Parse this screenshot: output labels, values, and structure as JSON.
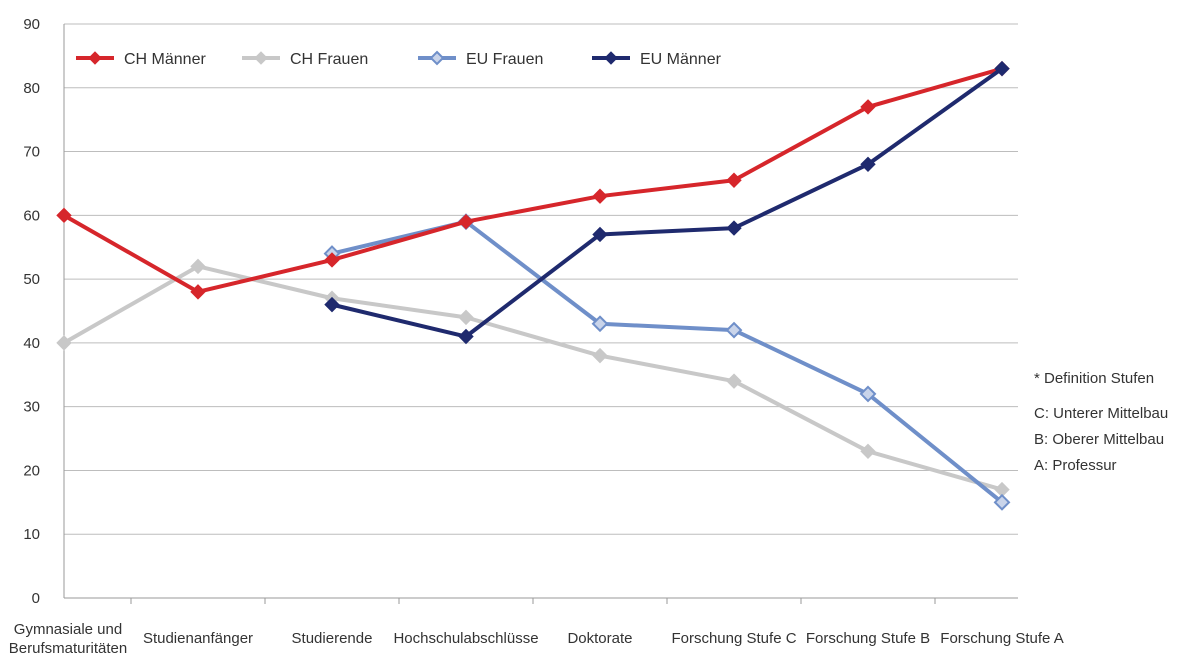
{
  "chart_data": {
    "type": "line",
    "categories": [
      [
        "Gymnasiale und",
        "Berufsmaturitäten"
      ],
      [
        "Studienanfänger"
      ],
      [
        "Studierende"
      ],
      [
        "Hochschulabschlüsse"
      ],
      [
        "Doktorate"
      ],
      [
        "Forschung Stufe C"
      ],
      [
        "Forschung Stufe B"
      ],
      [
        "Forschung Stufe A"
      ]
    ],
    "ylim": [
      0,
      90
    ],
    "yticks": [
      0,
      10,
      20,
      30,
      40,
      50,
      60,
      70,
      80,
      90
    ],
    "grid": true,
    "legend_position": "top-left",
    "series": [
      {
        "name": "CH Männer",
        "color": "#d6262b",
        "marker": "diamond-filled",
        "values": [
          60,
          48,
          53,
          59,
          63,
          65.5,
          77,
          83
        ]
      },
      {
        "name": "CH Frauen",
        "color": "#c8c8c8",
        "marker": "diamond-filled",
        "values": [
          40,
          52,
          47,
          44,
          38,
          34,
          23,
          17
        ]
      },
      {
        "name": "EU Frauen",
        "color": "#6f8fc9",
        "marker": "diamond-open",
        "values": [
          null,
          null,
          54,
          59,
          43,
          42,
          32,
          15
        ]
      },
      {
        "name": "EU Männer",
        "color": "#1f2a6e",
        "marker": "diamond-filled",
        "values": [
          null,
          null,
          46,
          41,
          57,
          58,
          68,
          83
        ]
      }
    ],
    "annotations": [
      "* Definition Stufen",
      "C: Unterer Mittelbau",
      "B: Oberer Mittelbau",
      "A: Professur"
    ]
  }
}
